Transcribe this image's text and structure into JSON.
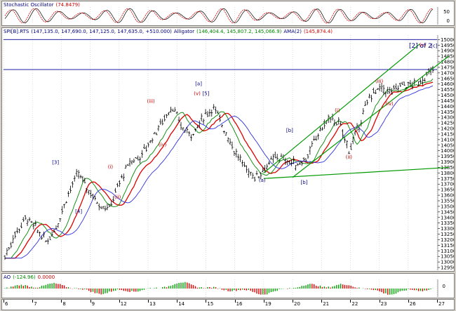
{
  "colors": {
    "price_bar": "#000000",
    "ma_red": "#e00000",
    "ma_green": "#008800",
    "ma_blue": "#3030e0",
    "channel": "#009900",
    "hline": "#000099",
    "grid": "#c8c8c8",
    "osc_red": "#cc0000",
    "osc_black": "#000000",
    "ao_green": "#00a000",
    "ao_red": "#e00000",
    "wave_red": "#cc0000",
    "wave_blue": "#000080"
  },
  "oscillator_panel": {
    "title": "Stochastic Oscillator",
    "value": "(74.8479)",
    "axis_labels": [
      "50",
      "0"
    ]
  },
  "price_panel": {
    "symbol": "SPI[B].RTS",
    "ohlc": "(147,135.0, 147,690.0, 147,125.0, 147,635.0, +510.000)",
    "alligator_label": "Alligator",
    "alligator_values": "(146,404.4, 145,807.2, 145,066.9)",
    "ama_label": "AMA(2)",
    "ama_value": "(145,874.4)",
    "count_label": "[2] of 2"
  },
  "ao_panel": {
    "title": "AO",
    "value1": "(-124.96)",
    "value2": "0.0000",
    "axis_label": "0"
  },
  "x_axis": [
    "6",
    "7",
    "8",
    "9",
    "12",
    "13",
    "14",
    "15",
    "16",
    "19",
    "20",
    "21",
    "22",
    "23",
    "26",
    "27"
  ],
  "chart_data": {
    "type": "ohlc",
    "y_ticks": [
      12950,
      13000,
      13050,
      13100,
      13150,
      13200,
      13250,
      13300,
      13350,
      13400,
      13450,
      13500,
      13550,
      13600,
      13650,
      13700,
      13750,
      13800,
      13850,
      13900,
      13950,
      14000,
      14050,
      14100,
      14150,
      14200,
      14250,
      14300,
      14350,
      14400,
      14450,
      14500,
      14550,
      14600,
      14650,
      14700,
      14750,
      14800,
      14850,
      14900,
      14950,
      15000
    ],
    "ylim": [
      12925,
      15040
    ],
    "x_labels": [
      "6",
      "7",
      "8",
      "9",
      "12",
      "13",
      "14",
      "15",
      "16",
      "19",
      "20",
      "21",
      "22",
      "23",
      "26",
      "27"
    ],
    "price_path": [
      13050,
      13250,
      13400,
      13300,
      13180,
      13330,
      13600,
      13800,
      13650,
      13520,
      13480,
      13720,
      13900,
      13950,
      14100,
      14250,
      14400,
      14200,
      14150,
      14300,
      14390,
      14200,
      14000,
      13850,
      13760,
      13850,
      13950,
      13910,
      13870,
      13950,
      14150,
      14290,
      14250,
      14000,
      14250,
      14500,
      14560,
      14520,
      14600,
      14590,
      14640,
      14730
    ],
    "moving_averages": [
      {
        "name": "red",
        "lag": 5,
        "smooth": 0.25
      },
      {
        "name": "green",
        "lag": 3,
        "smooth": 0.35
      },
      {
        "name": "blue",
        "lag": 8,
        "smooth": 0.15
      }
    ],
    "horizontal_lines": [
      15000,
      14730
    ],
    "channel_lines": [
      {
        "from": [
          9,
          13800
        ],
        "to": [
          14.4,
          14960
        ]
      },
      {
        "from": [
          10,
          13760
        ],
        "to": [
          15.4,
          14850
        ]
      },
      {
        "from": [
          9,
          13750
        ],
        "to": [
          15.4,
          13850
        ]
      }
    ],
    "wave_labels": [
      {
        "text": "[3]",
        "x": 1.8,
        "y": 13880,
        "color": "blue"
      },
      {
        "text": "[4]",
        "x": 2.6,
        "y": 13440,
        "color": "blue"
      },
      {
        "text": "(i)",
        "x": 3.7,
        "y": 13840,
        "color": "red"
      },
      {
        "text": "(ii)",
        "x": 3.95,
        "y": 13570,
        "color": "red"
      },
      {
        "text": "(iii)",
        "x": 5.1,
        "y": 14430,
        "color": "red"
      },
      {
        "text": "(iv)",
        "x": 5.5,
        "y": 14040,
        "color": "red"
      },
      {
        "text": "[a]",
        "x": 6.75,
        "y": 14590,
        "color": "blue"
      },
      {
        "text": "(v)",
        "x": 6.7,
        "y": 14500,
        "color": "red"
      },
      {
        "text": "[5]",
        "x": 7.0,
        "y": 14500,
        "color": "blue"
      },
      {
        "text": "(a)",
        "x": 8.95,
        "y": 13720,
        "color": "blue"
      },
      {
        "text": "[b]",
        "x": 9.9,
        "y": 14170,
        "color": "blue"
      },
      {
        "text": "[b]",
        "x": 10.4,
        "y": 13700,
        "color": "blue"
      },
      {
        "text": "(i)",
        "x": 11.55,
        "y": 14350,
        "color": "red"
      },
      {
        "text": "(ii)",
        "x": 11.95,
        "y": 13930,
        "color": "red"
      },
      {
        "text": "(iii)",
        "x": 13.0,
        "y": 14610,
        "color": "red"
      },
      {
        "text": "(iv)",
        "x": 13.35,
        "y": 14410,
        "color": "red"
      },
      {
        "text": "(v)",
        "x": 14.5,
        "y": 14935,
        "color": "red"
      },
      {
        "text": "[c]",
        "x": 14.9,
        "y": 14930,
        "color": "blue"
      }
    ]
  }
}
